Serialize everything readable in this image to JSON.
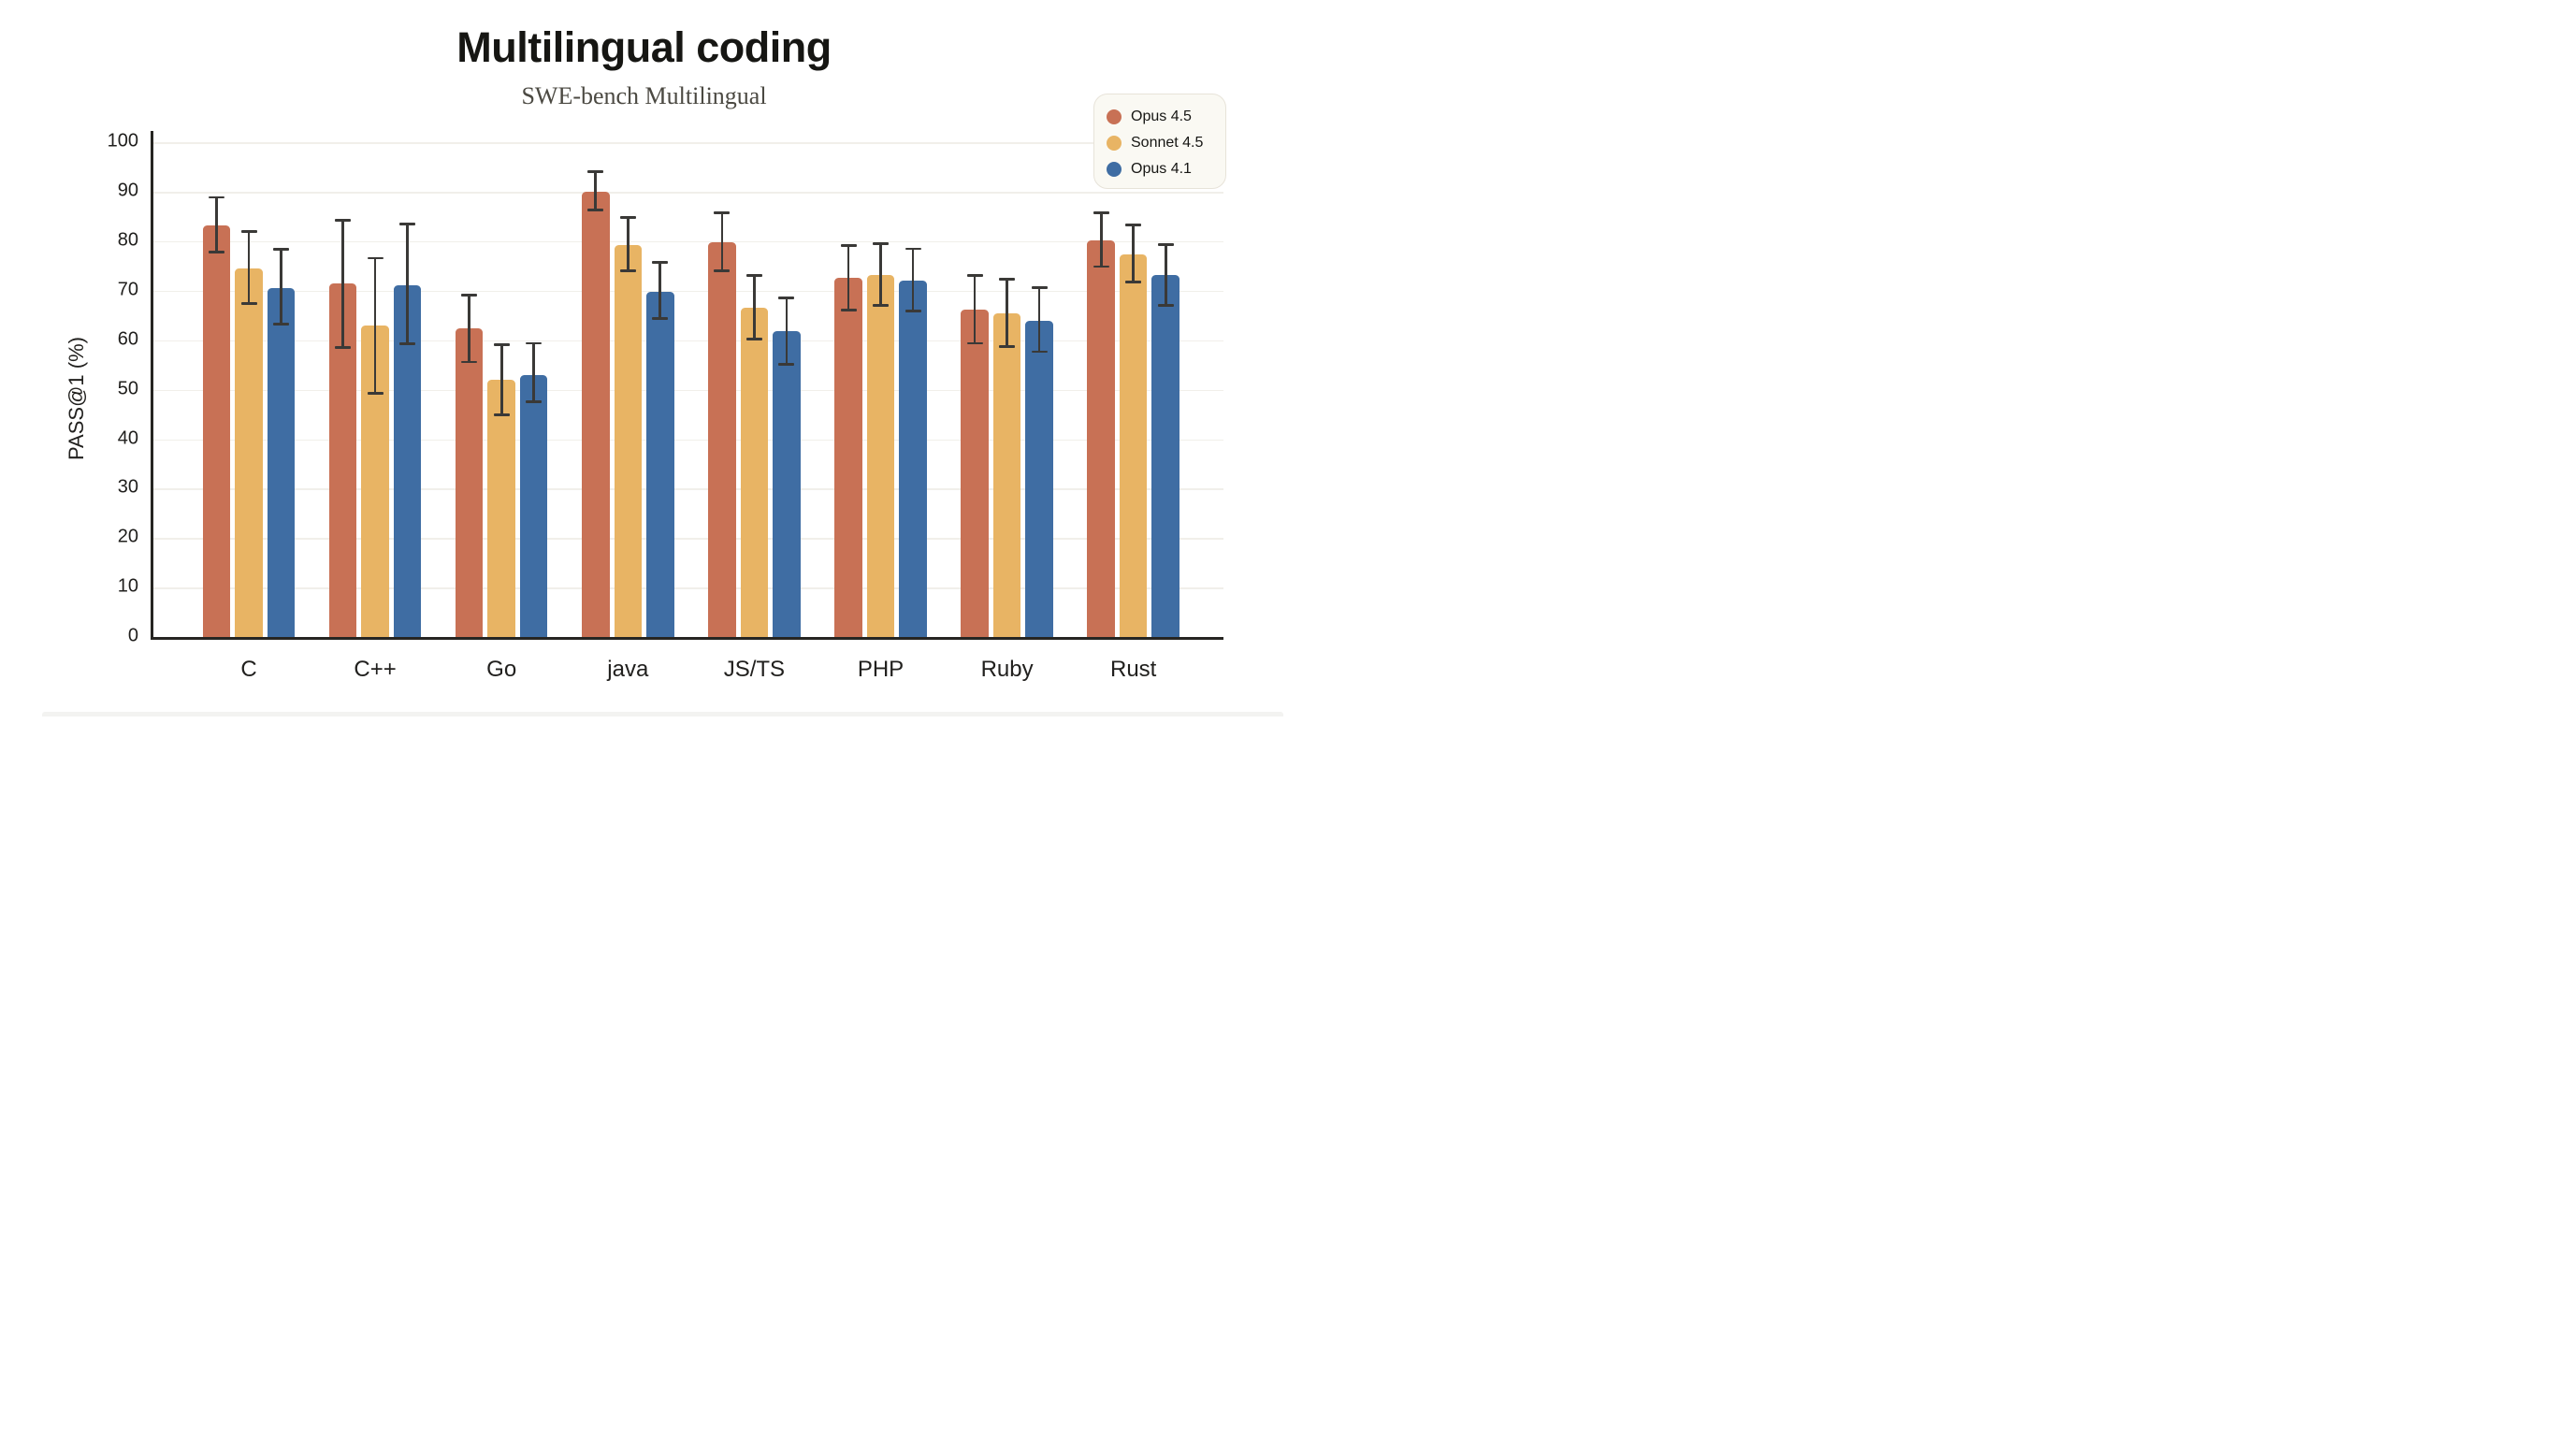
{
  "chart_data": {
    "type": "bar",
    "title": "Multilingual coding",
    "subtitle": "SWE-bench Multilingual",
    "ylabel": "PASS@1 (%)",
    "ylim": [
      0,
      100
    ],
    "yticks": [
      0,
      10,
      20,
      30,
      40,
      50,
      60,
      70,
      80,
      90,
      100
    ],
    "grid": true,
    "error_bars": true,
    "legend_position": "top-right",
    "categories": [
      "C",
      "C++",
      "Go",
      "java",
      "JS/TS",
      "PHP",
      "Ruby",
      "Rust"
    ],
    "series": [
      {
        "name": "Opus 4.5",
        "color": "#C87155",
        "values": [
          83.3,
          71.4,
          62.4,
          90.0,
          79.8,
          72.6,
          66.2,
          80.1
        ],
        "err_low": [
          77.8,
          58.6,
          55.6,
          86.4,
          74.1,
          66.1,
          59.4,
          74.9
        ],
        "err_high": [
          88.9,
          84.3,
          69.2,
          94.1,
          85.7,
          79.2,
          73.1,
          85.8
        ]
      },
      {
        "name": "Sonnet 4.5",
        "color": "#E8B464",
        "values": [
          74.5,
          62.9,
          52.1,
          79.3,
          66.5,
          73.1,
          65.4,
          77.4
        ],
        "err_low": [
          67.4,
          49.3,
          44.9,
          74.0,
          60.2,
          67.1,
          58.7,
          71.8
        ],
        "err_high": [
          82.0,
          76.6,
          59.1,
          84.8,
          73.1,
          79.5,
          72.3,
          83.3
        ]
      },
      {
        "name": "Opus 4.1",
        "color": "#3F6DA3",
        "values": [
          70.6,
          71.2,
          53.0,
          69.8,
          61.8,
          72.0,
          64.0,
          73.1
        ],
        "err_low": [
          63.2,
          59.3,
          47.6,
          64.4,
          55.2,
          65.9,
          57.7,
          67.1
        ],
        "err_high": [
          78.4,
          83.5,
          59.4,
          75.7,
          68.6,
          78.5,
          70.7,
          79.4
        ]
      }
    ]
  },
  "style": {
    "colors": {
      "background": "#FFFFFF",
      "title": "#161613",
      "subtitle": "#4B4942",
      "axis": "#262522",
      "tick_label": "#21201E",
      "gridline": "#F1EFEA",
      "errorbar": "#3A3937",
      "legend_bg": "#FAF9F3",
      "legend_border": "#E7E3D9",
      "legend_text": "#161613"
    }
  }
}
